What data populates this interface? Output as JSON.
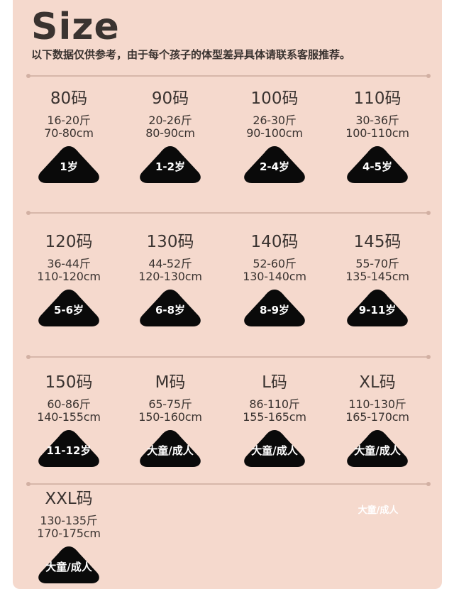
{
  "header": {
    "title": "Size",
    "subtitle": "以下数据仅供参考，由于每个孩子的体型差异具体请联系客服推荐。"
  },
  "sizes": [
    {
      "size": "80码",
      "weight": "16-20斤",
      "height": "70-80cm",
      "age": "1岁"
    },
    {
      "size": "90码",
      "weight": "20-26斤",
      "height": "80-90cm",
      "age": "1-2岁"
    },
    {
      "size": "100码",
      "weight": "26-30斤",
      "height": "90-100cm",
      "age": "2-4岁"
    },
    {
      "size": "110码",
      "weight": "30-36斤",
      "height": "100-110cm",
      "age": "4-5岁"
    },
    {
      "size": "120码",
      "weight": "36-44斤",
      "height": "110-120cm",
      "age": "5-6岁"
    },
    {
      "size": "130码",
      "weight": "44-52斤",
      "height": "120-130cm",
      "age": "6-8岁"
    },
    {
      "size": "140码",
      "weight": "52-60斤",
      "height": "130-140cm",
      "age": "8-9岁"
    },
    {
      "size": "145码",
      "weight": "55-70斤",
      "height": "135-145cm",
      "age": "9-11岁"
    },
    {
      "size": "150码",
      "weight": "60-86斤",
      "height": "140-155cm",
      "age": "11-12岁"
    },
    {
      "size": "M码",
      "weight": "65-75斤",
      "height": "150-160cm",
      "age": "大童/成人"
    },
    {
      "size": "L码",
      "weight": "86-110斤",
      "height": "155-165cm",
      "age": "大童/成人"
    },
    {
      "size": "XL码",
      "weight": "110-130斤",
      "height": "165-170cm",
      "age": "大童/成人"
    },
    {
      "size": "XXL码",
      "weight": "130-135斤",
      "height": "170-175cm",
      "age": "大童/成人"
    }
  ],
  "extra_label": "大童/成人",
  "colors": {
    "background": "#f5d9cd",
    "text": "#3a3330",
    "badge": "#0a0a0a",
    "divider": "#d7b7aa"
  }
}
